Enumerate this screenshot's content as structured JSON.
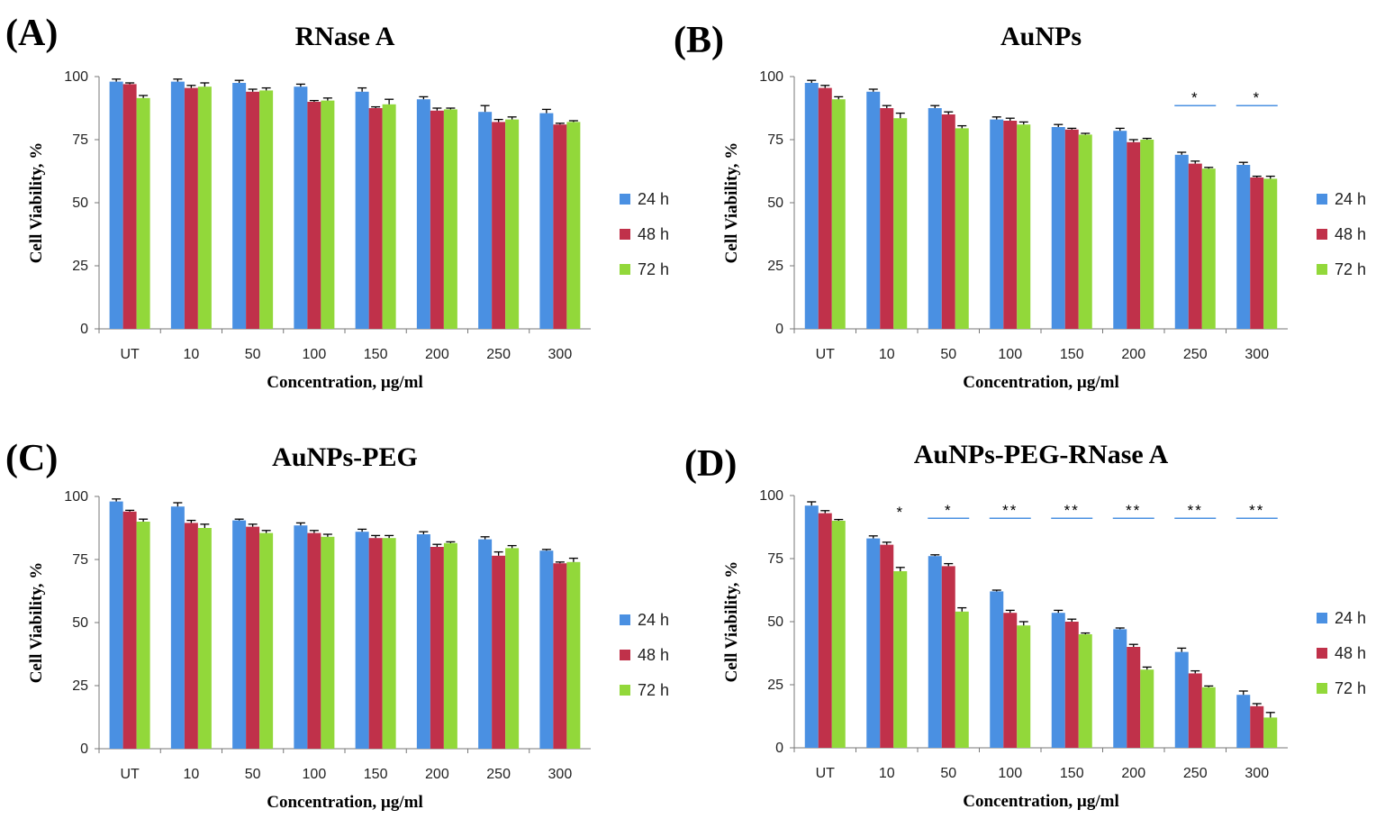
{
  "colors": {
    "s24": "#4A90E2",
    "s48": "#C0314A",
    "s72": "#92D83A",
    "sig_line": "#4A90E2"
  },
  "chart_data": [
    {
      "type": "bar",
      "panel_label": "(A)",
      "title": "RNase A",
      "xlabel": "Concentration, µg/ml",
      "ylabel": "Cell  Viability, %",
      "ylim": [
        0,
        100
      ],
      "yticks": [
        "0",
        "25",
        "50",
        "75",
        "100"
      ],
      "categories": [
        "UT",
        "10",
        "50",
        "100",
        "150",
        "200",
        "250",
        "300"
      ],
      "series": [
        {
          "name": "24 h",
          "values": [
            98,
            98,
            97.5,
            96,
            94,
            91,
            86,
            85.5
          ],
          "errors": [
            1,
            1,
            1,
            1,
            1.5,
            1,
            2.5,
            1.5
          ]
        },
        {
          "name": "48 h",
          "values": [
            97,
            95.5,
            94,
            90,
            87.5,
            86.5,
            82,
            81
          ],
          "errors": [
            0.5,
            1,
            1,
            0.5,
            0.5,
            1,
            1,
            0.5
          ]
        },
        {
          "name": "72 h",
          "values": [
            91.5,
            96,
            94.5,
            90.5,
            89,
            87,
            83,
            82
          ],
          "errors": [
            1,
            1.5,
            1,
            1,
            2,
            0.5,
            1,
            0.5
          ]
        }
      ],
      "significance": []
    },
    {
      "type": "bar",
      "panel_label": "(B)",
      "title": "AuNPs",
      "xlabel": "Concentration, µg/ml",
      "ylabel": "Cell  Viability, %",
      "ylim": [
        0,
        100
      ],
      "yticks": [
        "0",
        "25",
        "50",
        "75",
        "100"
      ],
      "categories": [
        "UT",
        "10",
        "50",
        "100",
        "150",
        "200",
        "250",
        "300"
      ],
      "series": [
        {
          "name": "24 h",
          "values": [
            97.5,
            94,
            87.5,
            83,
            80,
            78.5,
            69,
            65
          ],
          "errors": [
            1,
            1,
            1,
            1,
            1,
            1,
            1,
            1
          ]
        },
        {
          "name": "48 h",
          "values": [
            95.5,
            87.5,
            85,
            82.5,
            79,
            74,
            65.5,
            60
          ],
          "errors": [
            1,
            1,
            1,
            1,
            0.5,
            1,
            1,
            0.5
          ]
        },
        {
          "name": "72 h",
          "values": [
            91,
            83.5,
            79.5,
            81,
            77,
            75,
            63.5,
            59.5
          ],
          "errors": [
            1,
            2,
            1,
            1,
            0.5,
            0.5,
            0.5,
            1
          ]
        }
      ],
      "significance": [
        {
          "category": "250",
          "label": "*"
        },
        {
          "category": "300",
          "label": "*"
        }
      ]
    },
    {
      "type": "bar",
      "panel_label": "(C)",
      "title": "AuNPs-PEG",
      "xlabel": "Concentration, µg/ml",
      "ylabel": "Cell  Viability, %",
      "ylim": [
        0,
        100
      ],
      "yticks": [
        "0",
        "25",
        "50",
        "75",
        "100"
      ],
      "categories": [
        "UT",
        "10",
        "50",
        "100",
        "150",
        "200",
        "250",
        "300"
      ],
      "series": [
        {
          "name": "24 h",
          "values": [
            98,
            96,
            90.5,
            88.5,
            86,
            85,
            83,
            78.5
          ],
          "errors": [
            1,
            1.5,
            0.5,
            1,
            1,
            1,
            1,
            0.5
          ]
        },
        {
          "name": "48 h",
          "values": [
            94,
            89.5,
            88,
            85.5,
            83.5,
            80,
            76.5,
            73.5
          ],
          "errors": [
            0.5,
            1,
            1,
            1,
            1,
            1,
            1.5,
            0.5
          ]
        },
        {
          "name": "72 h",
          "values": [
            90,
            87.5,
            85.5,
            84,
            83.5,
            81.5,
            79.5,
            74
          ],
          "errors": [
            1,
            1.5,
            1,
            1,
            1,
            0.5,
            1,
            1.5
          ]
        }
      ],
      "significance": []
    },
    {
      "type": "bar",
      "panel_label": "(D)",
      "title": "AuNPs-PEG-RNase A",
      "xlabel": "Concentration, µg/ml",
      "ylabel": "Cell  Viability, %",
      "ylim": [
        0,
        100
      ],
      "yticks": [
        "0",
        "25",
        "50",
        "75",
        "100"
      ],
      "categories": [
        "UT",
        "10",
        "50",
        "100",
        "150",
        "200",
        "250",
        "300"
      ],
      "series": [
        {
          "name": "24 h",
          "values": [
            96,
            83,
            76,
            62,
            53.5,
            47,
            38,
            21
          ],
          "errors": [
            1.5,
            1,
            0.5,
            0.5,
            1,
            0.5,
            1.5,
            1.5
          ]
        },
        {
          "name": "48 h",
          "values": [
            93,
            80.5,
            72,
            53.5,
            50,
            40,
            29.5,
            16.5
          ],
          "errors": [
            1,
            1,
            1,
            1,
            1,
            1,
            1,
            1
          ]
        },
        {
          "name": "72 h",
          "values": [
            90,
            70,
            54,
            48.5,
            45,
            31,
            24,
            12
          ],
          "errors": [
            0.5,
            1.5,
            1.5,
            1.5,
            0.5,
            1,
            0.5,
            2
          ]
        }
      ],
      "significance": [
        {
          "category": "10",
          "label": "*",
          "no_line": true
        },
        {
          "category": "50",
          "label": "*"
        },
        {
          "category": "100",
          "label": "**"
        },
        {
          "category": "150",
          "label": "**"
        },
        {
          "category": "200",
          "label": "**"
        },
        {
          "category": "250",
          "label": "**"
        },
        {
          "category": "300",
          "label": "**"
        }
      ]
    }
  ]
}
